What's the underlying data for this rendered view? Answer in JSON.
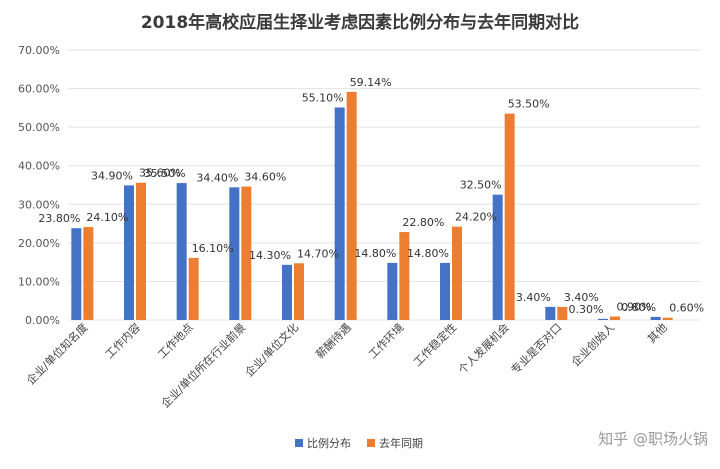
{
  "chart_data": {
    "type": "bar",
    "title": "2018年高校应届生择业考虑因素比例分布与去年同期对比",
    "xlabel": "",
    "ylabel": "",
    "ylim": [
      0,
      70
    ],
    "y_ticks": [
      "0.00%",
      "10.00%",
      "20.00%",
      "30.00%",
      "40.00%",
      "50.00%",
      "60.00%",
      "70.00%"
    ],
    "grid": true,
    "legend_position": "bottom",
    "categories": [
      "企业/单位知名度",
      "工作内容",
      "工作地点",
      "企业/单位所在行业前景",
      "企业/单位文化",
      "薪酬待遇",
      "工作环境",
      "工作稳定性",
      "个人发展机会",
      "专业是否对口",
      "企业创始人",
      "其他"
    ],
    "series": [
      {
        "name": "比例分布",
        "color": "#4472c4",
        "values": [
          23.8,
          34.9,
          35.5,
          34.4,
          14.3,
          55.1,
          14.8,
          14.8,
          32.5,
          3.4,
          0.3,
          0.8
        ],
        "labels": [
          "23.80%",
          "34.90%",
          "35.50%",
          "34.40%",
          "14.30%",
          "55.10%",
          "14.80%",
          "14.80%",
          "32.50%",
          "3.40%",
          "0.30%",
          "0.80%"
        ]
      },
      {
        "name": "去年同期",
        "color": "#ed7d31",
        "values": [
          24.1,
          35.6,
          16.1,
          34.6,
          14.7,
          59.14,
          22.8,
          24.2,
          53.5,
          3.4,
          0.9,
          0.6
        ],
        "labels": [
          "24.10%",
          "35.60%",
          "16.10%",
          "34.60%",
          "14.70%",
          "59.14%",
          "22.80%",
          "24.20%",
          "53.50%",
          "3.40%",
          "0.90%",
          "0.60%"
        ]
      }
    ]
  },
  "watermark": "知乎 @职场火锅"
}
